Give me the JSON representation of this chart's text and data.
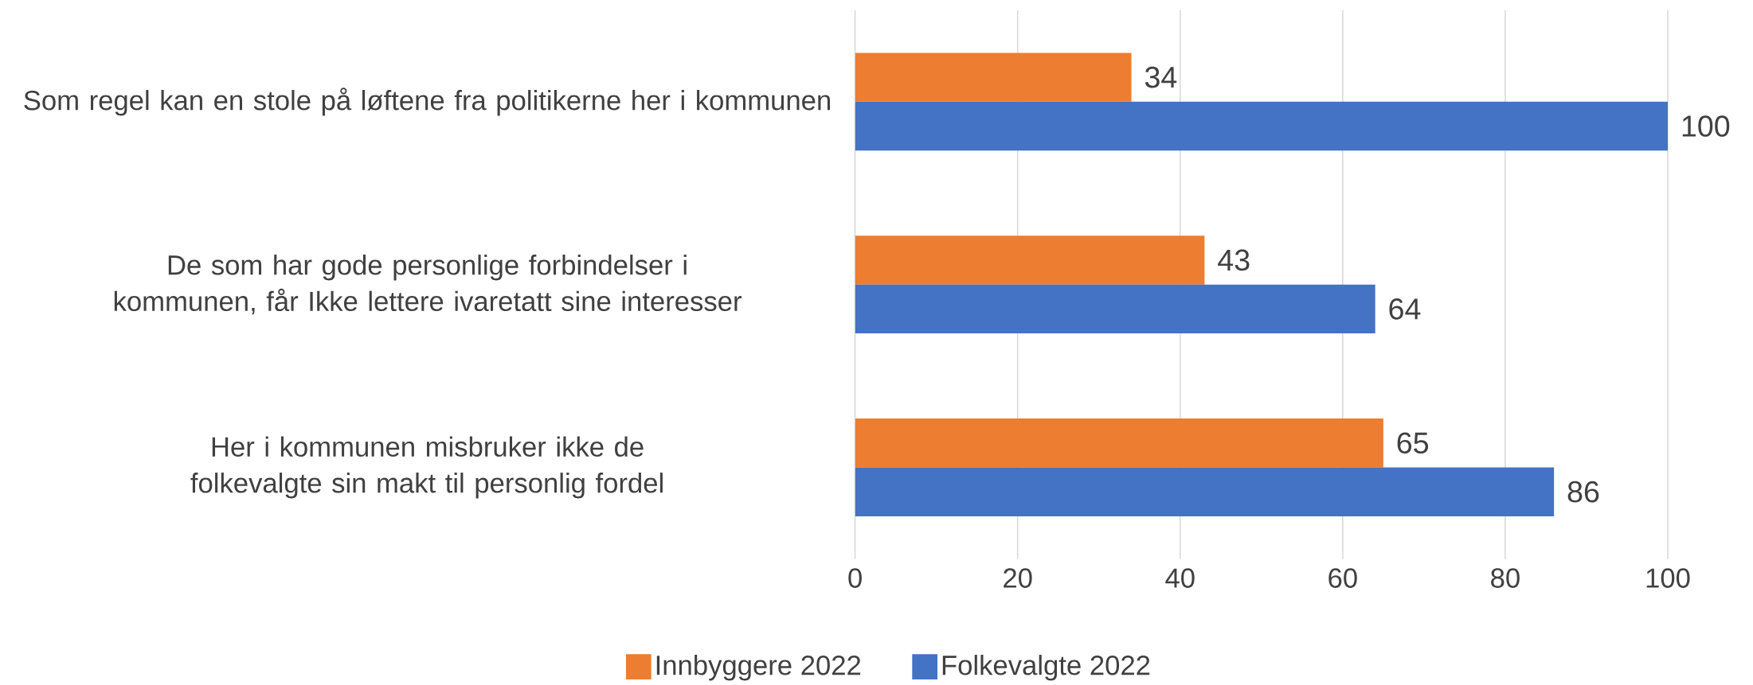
{
  "chart_data": {
    "type": "bar",
    "orientation": "horizontal",
    "categories": [
      "Som regel kan en stole på løftene fra politikerne her i kommunen",
      "De som har gode personlige forbindelser i kommunen, får Ikke lettere ivaretatt sine interesser",
      "Her i kommunen misbruker ikke de folkevalgte sin makt til personlig fordel"
    ],
    "series": [
      {
        "name": "Innbyggere 2022",
        "color": "#ed7d31",
        "values": [
          34,
          43,
          65
        ]
      },
      {
        "name": "Folkevalgte 2022",
        "color": "#4472c4",
        "values": [
          100,
          64,
          86
        ]
      }
    ],
    "xlim": [
      0,
      100
    ],
    "xticks": [
      0,
      20,
      40,
      60,
      80,
      100
    ],
    "grid": "x",
    "legend": "bottom",
    "data_labels": true
  }
}
